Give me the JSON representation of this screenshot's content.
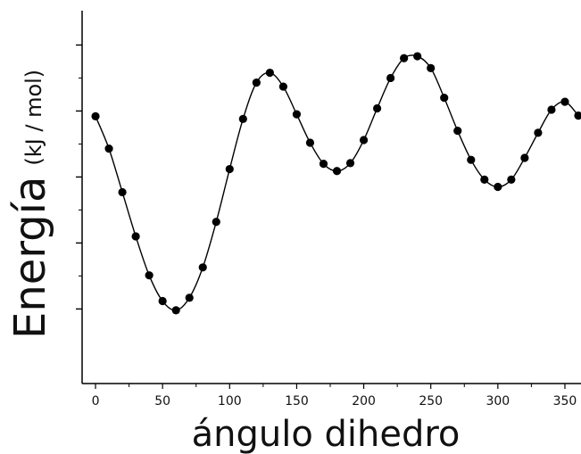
{
  "chart_data": {
    "type": "scatter",
    "title": "",
    "xlabel": "ángulo dihedro",
    "ylabel": "Energía",
    "ylabel_unit": "(kJ / mol)",
    "xlim": [
      -10,
      362
    ],
    "ylim": [
      -1.13,
      4.52
    ],
    "x_ticks": [
      0,
      50,
      100,
      150,
      200,
      250,
      300,
      350
    ],
    "x_tick_labels": [
      "0",
      "50",
      "100",
      "150",
      "200",
      "250",
      "300",
      "350"
    ],
    "y_major_ticks": [
      0,
      1,
      2,
      3,
      4
    ],
    "y_minor_ticks": [
      0.5,
      1.5,
      2.5,
      3.5
    ],
    "y_tick_labels_shown": false,
    "grid": false,
    "series": [
      {
        "style": "points-with-smooth-line",
        "color": "#000000",
        "x": [
          0,
          10,
          20,
          30,
          40,
          50,
          60,
          70,
          80,
          90,
          100,
          110,
          120,
          130,
          140,
          150,
          160,
          170,
          180,
          190,
          200,
          210,
          220,
          230,
          240,
          250,
          260,
          270,
          280,
          290,
          300,
          310,
          320,
          330,
          340,
          350,
          360
        ],
        "y": [
          2.92,
          2.43,
          1.77,
          1.1,
          0.51,
          0.12,
          -0.02,
          0.17,
          0.63,
          1.32,
          2.12,
          2.88,
          3.43,
          3.58,
          3.37,
          2.95,
          2.52,
          2.2,
          2.09,
          2.21,
          2.56,
          3.04,
          3.5,
          3.8,
          3.83,
          3.65,
          3.2,
          2.7,
          2.26,
          1.96,
          1.85,
          1.96,
          2.29,
          2.67,
          3.02,
          3.14,
          2.93
        ]
      }
    ]
  }
}
